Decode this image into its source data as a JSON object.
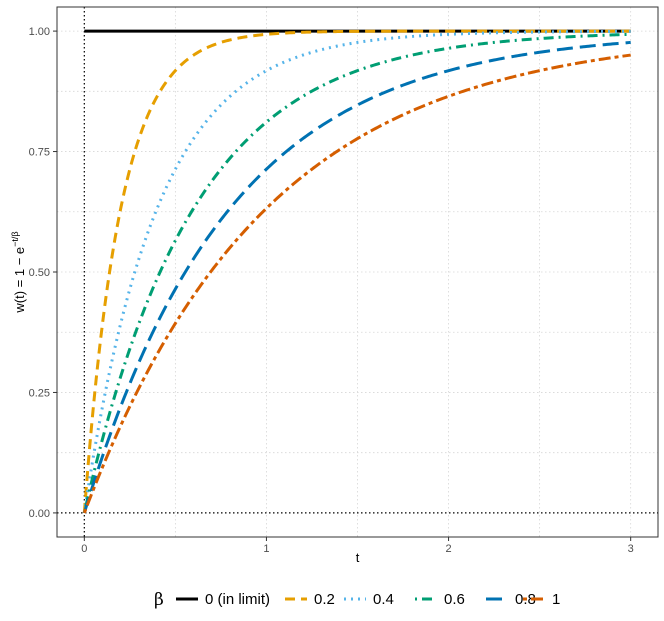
{
  "chart_data": {
    "type": "line",
    "xlabel": "t",
    "ylabel_prefix": "w(t) = 1 − e",
    "ylabel_exponent": "−t/β",
    "xlim": [
      -0.15,
      3.15
    ],
    "ylim": [
      -0.05,
      1.05
    ],
    "x_ticks": [
      0,
      1,
      2,
      3
    ],
    "x_tick_labels": [
      "0",
      "1",
      "2",
      "3"
    ],
    "y_ticks": [
      0,
      0.25,
      0.5,
      0.75,
      1.0
    ],
    "y_tick_labels": [
      "0.00",
      "0.25",
      "0.50",
      "0.75",
      "1.00"
    ],
    "grid": true,
    "reference_lines": {
      "vertical_x": 0,
      "horizontal_y": 0
    },
    "legend": {
      "title": "β",
      "placement": "bottom",
      "entries": [
        "0 (in limit)",
        "0.2",
        "0.4",
        "0.6",
        "0.8",
        "1"
      ]
    },
    "series": [
      {
        "name": "0 (in limit)",
        "beta": 0,
        "color": "#000000",
        "dash": "solid"
      },
      {
        "name": "0.2",
        "beta": 0.2,
        "color": "#E69F00",
        "dash": "dashed"
      },
      {
        "name": "0.4",
        "beta": 0.4,
        "color": "#56B4E9",
        "dash": "dotted"
      },
      {
        "name": "0.6",
        "beta": 0.6,
        "color": "#009E73",
        "dash": "dotdash"
      },
      {
        "name": "0.8",
        "beta": 0.8,
        "color": "#0072B2",
        "dash": "longdash"
      },
      {
        "name": "1",
        "beta": 1.0,
        "color": "#D55E00",
        "dash": "twodash"
      }
    ]
  }
}
